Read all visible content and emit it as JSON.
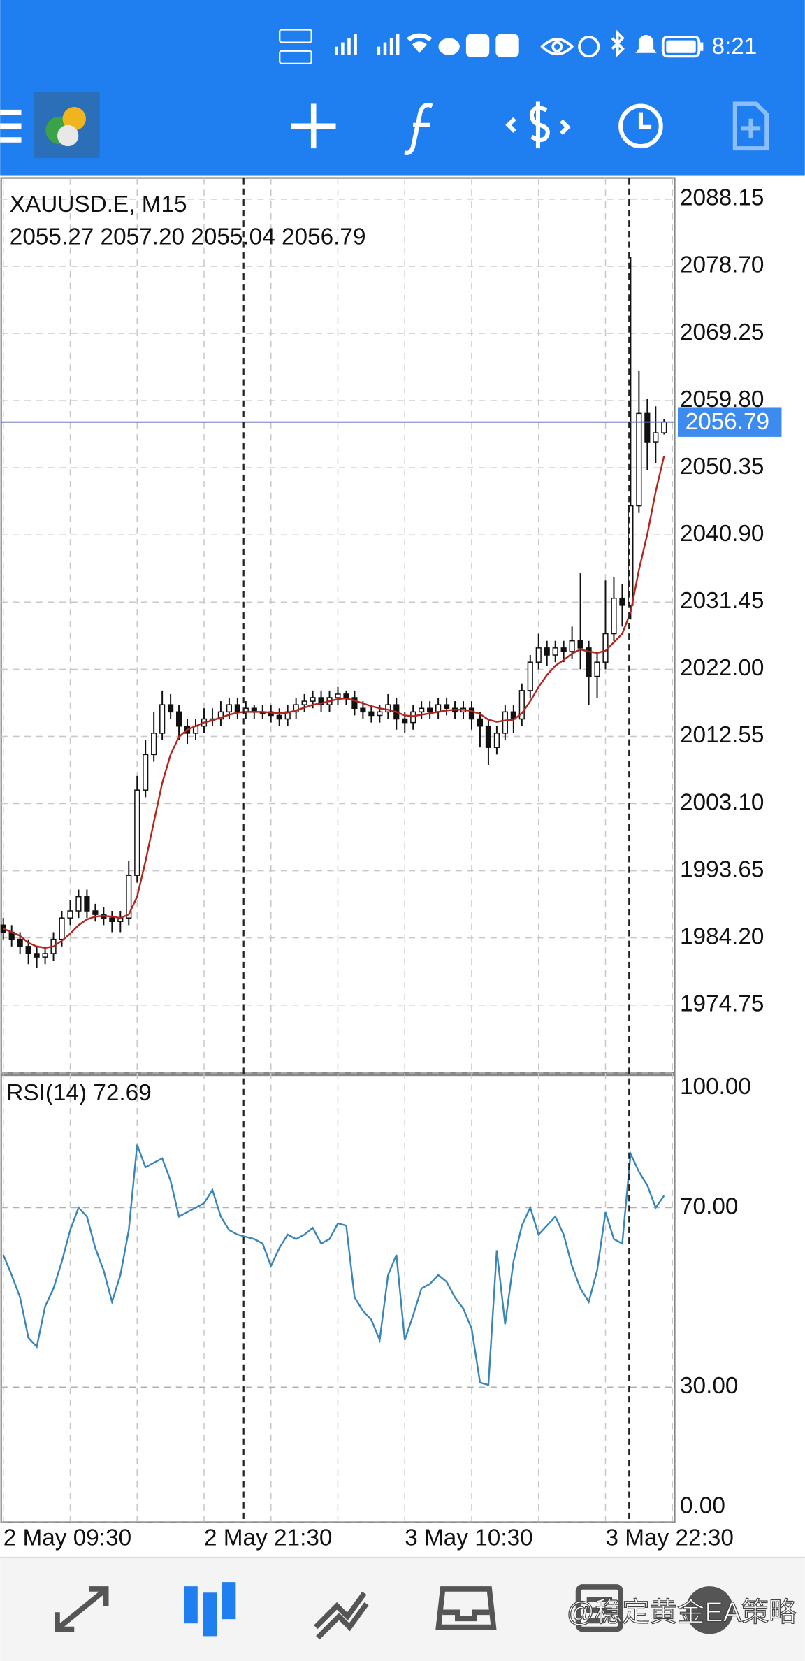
{
  "status_bar": {
    "time": "8:21"
  },
  "chart_data": [
    {
      "type": "candlestick",
      "title": "XAUUSD.E, M15",
      "subtitle": "2055.27 2057.20 2055.04 2056.79",
      "categories": [
        "2 May 09:30",
        null,
        null,
        null,
        null,
        null,
        null,
        null,
        null,
        null,
        null,
        null,
        null,
        null,
        null,
        null,
        null,
        null,
        null,
        null,
        null,
        null,
        null,
        null,
        "2 May 21:30",
        null,
        null,
        null,
        null,
        null,
        null,
        null,
        null,
        null,
        null,
        null,
        null,
        null,
        null,
        null,
        null,
        null,
        null,
        null,
        null,
        null,
        null,
        null,
        "3 May 10:30",
        null,
        null,
        null,
        null,
        null,
        null,
        null,
        null,
        null,
        null,
        null,
        null,
        null,
        null,
        null,
        null,
        null,
        null,
        null,
        null,
        null,
        null,
        null,
        "3 May 22:30",
        null,
        null,
        null,
        null,
        null,
        null,
        null
      ],
      "open": [
        1986,
        1985,
        1984,
        1983,
        1982,
        1981.5,
        1982,
        1984,
        1987,
        1988,
        1990,
        1988,
        1987.5,
        1987,
        1986.5,
        1987,
        1993,
        2005,
        2010,
        2013,
        2017,
        2016,
        2014,
        2013,
        2014,
        2015,
        2015,
        2016,
        2017,
        2016,
        2016.5,
        2016,
        2016,
        2015.5,
        2015,
        2016,
        2017,
        2017.5,
        2018,
        2017,
        2018,
        2018.5,
        2018,
        2016.5,
        2016,
        2015.5,
        2016,
        2017,
        2015,
        2014.5,
        2016,
        2016.5,
        2016,
        2017,
        2016.5,
        2016,
        2016.5,
        2015,
        2014,
        2011,
        2013,
        2016,
        2015,
        2019,
        2023,
        2025,
        2024,
        2025,
        2024.5,
        2026,
        2025,
        2021,
        2023,
        2027,
        2032,
        2031,
        2045,
        2058,
        2054,
        2055.27
      ],
      "high": [
        1987,
        1986,
        1985,
        1984,
        1983,
        1983,
        1985,
        1988,
        1989.5,
        1991,
        1991,
        1989,
        1988.5,
        1988,
        1988,
        1995,
        2007,
        2012,
        2016,
        2019,
        2018.5,
        2017,
        2015,
        2015,
        2016.5,
        2016.5,
        2017.5,
        2018,
        2018,
        2017.5,
        2017,
        2017,
        2017,
        2016.5,
        2017,
        2018,
        2018.5,
        2019,
        2019,
        2019,
        2019.5,
        2019,
        2019,
        2017.5,
        2017,
        2017,
        2018.5,
        2018,
        2016,
        2017,
        2017.5,
        2017.5,
        2018,
        2018,
        2017.5,
        2017.5,
        2017.5,
        2016,
        2015,
        2014,
        2017,
        2017,
        2020,
        2024,
        2027,
        2026,
        2026,
        2026,
        2028,
        2035.5,
        2026,
        2024.5,
        2034.5,
        2035,
        2034,
        2080,
        2064,
        2060,
        2059,
        2057.2
      ],
      "low": [
        1984,
        1983,
        1982,
        1980.5,
        1980,
        1980.5,
        1981,
        1983,
        1986,
        1987,
        1987,
        1986.5,
        1986,
        1985,
        1985,
        1986,
        1992,
        2004,
        2009,
        2012,
        2015,
        2012,
        2011.5,
        2012,
        2013,
        2014,
        2014,
        2015,
        2015,
        2015,
        2015,
        2015,
        2014.5,
        2014,
        2014,
        2015,
        2016,
        2016.5,
        2016,
        2016,
        2017,
        2017,
        2015.5,
        2015,
        2014.5,
        2014.5,
        2015,
        2013.5,
        2013,
        2013.5,
        2015,
        2015,
        2015,
        2015.5,
        2015,
        2015,
        2013.5,
        2011,
        2008.5,
        2010,
        2012,
        2013,
        2014,
        2018,
        2022,
        2022.5,
        2023,
        2023,
        2023.5,
        2022,
        2017,
        2018,
        2022,
        2026,
        2028,
        2029,
        2044,
        2050,
        2051,
        2055.04
      ],
      "close": [
        1985,
        1984,
        1983,
        1982,
        1981.5,
        1982,
        1984,
        1987,
        1988,
        1990,
        1988,
        1987.5,
        1987,
        1986.5,
        1987,
        1993,
        2005,
        2010,
        2013,
        2017,
        2016,
        2014,
        2013,
        2014,
        2015,
        2015,
        2016,
        2017,
        2016,
        2016.5,
        2016,
        2016,
        2015.5,
        2015,
        2016,
        2017,
        2017.5,
        2018,
        2017,
        2018,
        2018.5,
        2018,
        2016.5,
        2016,
        2015.5,
        2016,
        2017,
        2015,
        2014.5,
        2016,
        2016.5,
        2016,
        2017,
        2016.5,
        2016,
        2016.5,
        2015,
        2014,
        2011,
        2013,
        2016,
        2015,
        2019,
        2023,
        2025,
        2024,
        2025,
        2024.5,
        2026,
        2025,
        2021,
        2023,
        2027,
        2032,
        2031,
        2045,
        2058,
        2054,
        2055.27,
        2056.79
      ],
      "color": "#111111",
      "lines": [
        {
          "color": "#b3261e",
          "values": [
            1985.5,
            1985,
            1984.5,
            1983.5,
            1983,
            1982.8,
            1983,
            1983.8,
            1984.8,
            1986,
            1986.8,
            1987.2,
            1987.3,
            1987.2,
            1987,
            1987.5,
            1990,
            1995,
            2000.5,
            2006,
            2010,
            2012.5,
            2013.5,
            2014,
            2014.5,
            2014.8,
            2015.2,
            2015.6,
            2015.9,
            2016,
            2016,
            2016,
            2015.9,
            2015.8,
            2015.9,
            2016.2,
            2016.6,
            2017,
            2017.2,
            2017.5,
            2017.8,
            2017.9,
            2017.6,
            2017.2,
            2016.8,
            2016.5,
            2016.3,
            2016,
            2015.5,
            2015.4,
            2015.6,
            2015.8,
            2016,
            2016.2,
            2016.3,
            2016.3,
            2016.1,
            2015.7,
            2014.9,
            2014.6,
            2014.8,
            2014.9,
            2015.8,
            2017.5,
            2019.5,
            2021.2,
            2022.5,
            2023.3,
            2024.2,
            2024.8,
            2024.5,
            2024.3,
            2024.6,
            2025.8,
            2027,
            2030,
            2036,
            2041,
            2047,
            2052
          ]
        }
      ],
      "current_price": {
        "value": 2056.79,
        "color": "#3d8bef"
      },
      "ylim": [
        1965.18,
        2091.13
      ],
      "yticks": [
        2088.15,
        {
          "value": 2078.7,
          "label": "2078.70"
        },
        2069.25,
        {
          "value": 2059.8,
          "label": "2059.80"
        },
        2050.35,
        {
          "value": 2040.9,
          "label": "2040.90"
        },
        2031.45,
        {
          "value": 2022,
          "label": "2022.00"
        },
        2012.55,
        {
          "value": 2003.1,
          "label": "2003.10"
        },
        1993.65,
        {
          "value": 1984.2,
          "label": "1984.20"
        },
        1974.75
      ],
      "grid": true
    },
    {
      "type": "line",
      "title": "RSI(14) 72.69",
      "color": "#3a86b8",
      "values": [
        59.5,
        55,
        50,
        41,
        39,
        48,
        52,
        58,
        65,
        70,
        68,
        61,
        56,
        49,
        55,
        65,
        84,
        79,
        80,
        81,
        76,
        68,
        69,
        70,
        71,
        74,
        68,
        65,
        64,
        63.5,
        63,
        62,
        57,
        61,
        64,
        63,
        64,
        65.5,
        62,
        63,
        66.5,
        66,
        50,
        47,
        45,
        40.5,
        55,
        59.5,
        40.5,
        46,
        52,
        53,
        55,
        53.5,
        50,
        47.5,
        43,
        31,
        30.5,
        60.5,
        44,
        58,
        66,
        70,
        64,
        66,
        68,
        64,
        57,
        52,
        49,
        56,
        69,
        63,
        62,
        82,
        78,
        75,
        70,
        72.69
      ],
      "ylim": [
        0,
        100
      ],
      "yticks": [
        {
          "value": 100,
          "label": "100.00"
        },
        {
          "value": 70,
          "label": "70.00"
        },
        {
          "value": 30,
          "label": "30.00"
        },
        {
          "value": 0,
          "label": "0.00"
        }
      ],
      "grid": true
    }
  ],
  "watermark": "@稳定黄金EA策略"
}
